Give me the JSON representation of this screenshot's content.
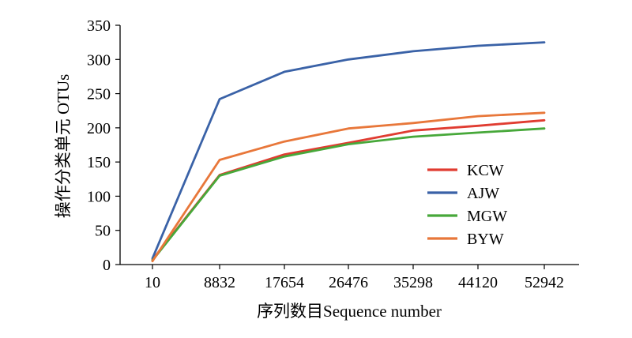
{
  "chart_data": {
    "type": "line",
    "xlabel": "序列数目Sequence number",
    "ylabel": "操作分类单元 OTUs",
    "x": [
      10,
      8832,
      17654,
      26476,
      35298,
      44120,
      52942
    ],
    "x_tick_labels": [
      "10",
      "8832",
      "17654",
      "26476",
      "35298",
      "44120",
      "52942"
    ],
    "y_ticks": [
      0,
      50,
      100,
      150,
      200,
      250,
      300,
      350
    ],
    "ylim": [
      0,
      350
    ],
    "grid": false,
    "legend_position": "right",
    "series": [
      {
        "name": "KCW",
        "color": "#e03c31",
        "values": [
          7,
          131,
          161,
          178,
          196,
          203,
          211
        ]
      },
      {
        "name": "AJW",
        "color": "#3a62a7",
        "values": [
          9,
          242,
          282,
          300,
          312,
          320,
          325
        ]
      },
      {
        "name": "MGW",
        "color": "#47a83a",
        "values": [
          6,
          130,
          158,
          176,
          187,
          193,
          199
        ]
      },
      {
        "name": "BYW",
        "color": "#e8773a",
        "values": [
          5,
          153,
          180,
          199,
          207,
          217,
          222
        ]
      }
    ]
  }
}
